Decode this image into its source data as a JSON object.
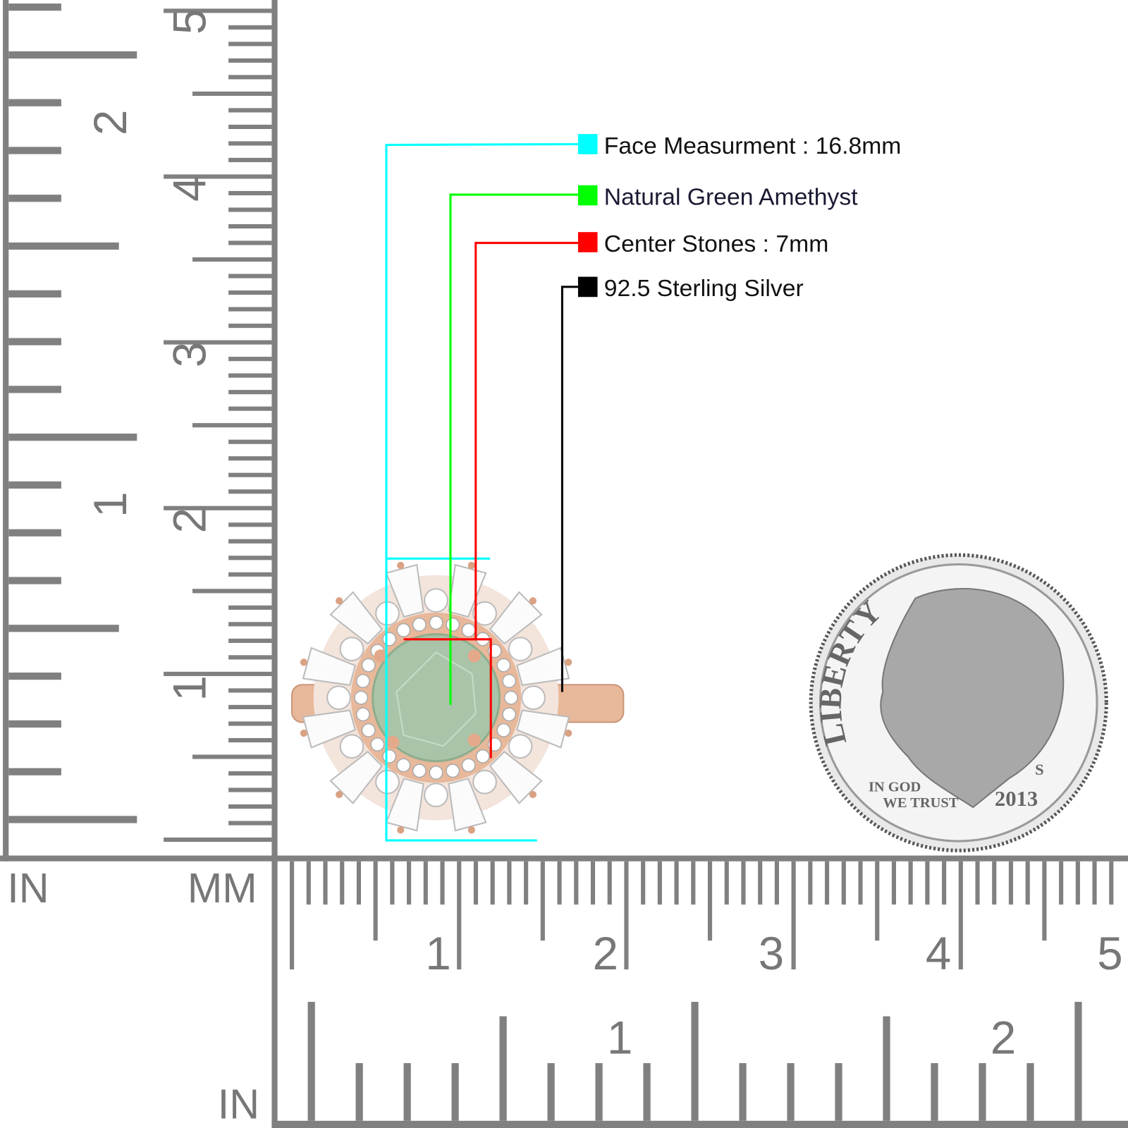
{
  "legend": [
    {
      "label": "Face Measurment : 16.8mm",
      "color": "#00ffff"
    },
    {
      "label": "Natural Green Amethyst",
      "color": "#00ff00"
    },
    {
      "label": "Center Stones : 7mm",
      "color": "#ff0000"
    },
    {
      "label": "92.5 Sterling Silver",
      "color": "#000000"
    }
  ],
  "rulers": {
    "left_unit_in": "IN",
    "left_unit_mm": "MM",
    "bottom_unit_in": "IN",
    "left_inch_labels": [
      "1",
      "2"
    ],
    "left_cm_labels": [
      "1",
      "2",
      "3",
      "4",
      "5"
    ],
    "bottom_cm_labels": [
      "1",
      "2",
      "3",
      "4",
      "5"
    ],
    "bottom_inch_labels": [
      "1",
      "2"
    ],
    "color": "#808080"
  },
  "product": {
    "metal_color": "#e8b89a",
    "center_stone_color": "#a9c4a8"
  },
  "coin": {
    "motto_top": "LIBERTY",
    "motto_1": "IN GOD",
    "motto_2": "WE TRUST",
    "year": "2013",
    "mint_mark": "S"
  }
}
